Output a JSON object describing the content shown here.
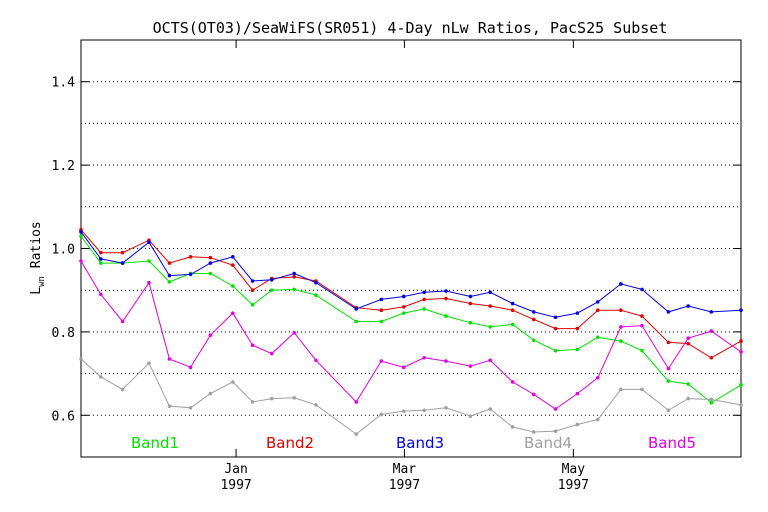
{
  "chart_data": {
    "type": "line",
    "title": "OCTS(OT03)/SeaWiFS(SR051) 4-Day nLw Ratios, PacS25 Subset",
    "ylabel_main": "L",
    "ylabel_sub": "wn",
    "ylabel_rest": " Ratios",
    "ylim": [
      0.5,
      1.5
    ],
    "xlim": [
      0,
      100
    ],
    "yticks": [
      0.6,
      0.8,
      1.0,
      1.2,
      1.4
    ],
    "ytick_labels": [
      "0.6",
      "0.8",
      "1.0",
      "1.2",
      "1.4"
    ],
    "grid": true,
    "xticks": [
      {
        "x": 23.5,
        "month": "Jan",
        "year": "1997"
      },
      {
        "x": 49.0,
        "month": "Mar",
        "year": "1997"
      },
      {
        "x": 74.6,
        "month": "May",
        "year": "1997"
      }
    ],
    "legend_placement": "bottom",
    "series": [
      {
        "name": "Band1",
        "color": "#00e000",
        "values": [
          1.03,
          0.965,
          0.965,
          0.97,
          0.92,
          0.94,
          0.94,
          0.91,
          0.865,
          0.9,
          0.902,
          0.888,
          0.825,
          0.825,
          0.845,
          0.855,
          0.838,
          0.822,
          0.812,
          0.818,
          0.78,
          0.755,
          0.758,
          0.787,
          0.778,
          0.755,
          0.682,
          0.675,
          0.63,
          0.673
        ]
      },
      {
        "name": "Band2",
        "color": "#e00000",
        "values": [
          1.045,
          0.99,
          0.99,
          1.02,
          0.965,
          0.98,
          0.978,
          0.96,
          0.9,
          0.928,
          0.932,
          0.922,
          0.858,
          0.852,
          0.86,
          0.878,
          0.88,
          0.868,
          0.862,
          0.852,
          0.83,
          0.808,
          0.808,
          0.852,
          0.852,
          0.838,
          0.775,
          0.772,
          0.738,
          0.778
        ]
      },
      {
        "name": "Band3",
        "color": "#0000e0",
        "values": [
          1.04,
          0.975,
          0.965,
          1.015,
          0.935,
          0.938,
          0.965,
          0.98,
          0.922,
          0.925,
          0.94,
          0.918,
          0.855,
          0.878,
          0.885,
          0.895,
          0.898,
          0.885,
          0.895,
          0.868,
          0.848,
          0.835,
          0.845,
          0.872,
          0.915,
          0.902,
          0.848,
          0.862,
          0.848,
          0.852
        ]
      },
      {
        "name": "Band4",
        "color": "#a0a0a0",
        "values": [
          0.735,
          0.692,
          0.662,
          0.725,
          0.622,
          0.618,
          0.652,
          0.68,
          0.632,
          0.64,
          0.642,
          0.625,
          0.555,
          0.602,
          0.61,
          0.612,
          0.618,
          0.598,
          0.615,
          0.572,
          0.56,
          0.562,
          0.578,
          0.59,
          0.662,
          0.662,
          0.612,
          0.64,
          0.638,
          0.625
        ]
      },
      {
        "name": "Band5",
        "color": "#e000e0",
        "values": [
          0.97,
          0.89,
          0.825,
          0.918,
          0.735,
          0.715,
          0.792,
          0.845,
          0.768,
          0.748,
          0.798,
          0.732,
          0.632,
          0.73,
          0.715,
          0.738,
          0.73,
          0.718,
          0.732,
          0.68,
          0.65,
          0.615,
          0.652,
          0.69,
          0.812,
          0.815,
          0.712,
          0.785,
          0.802,
          0.752
        ]
      }
    ],
    "x_positions": [
      0,
      3.0,
      6.3,
      10.3,
      13.4,
      16.6,
      19.6,
      23.0,
      26.0,
      28.9,
      32.3,
      35.6,
      41.7,
      45.5,
      48.9,
      52.0,
      55.3,
      59.0,
      62.0,
      65.4,
      68.6,
      71.9,
      75.2,
      78.3,
      81.8,
      85.0,
      89.0,
      92.0,
      95.5,
      100
    ]
  }
}
